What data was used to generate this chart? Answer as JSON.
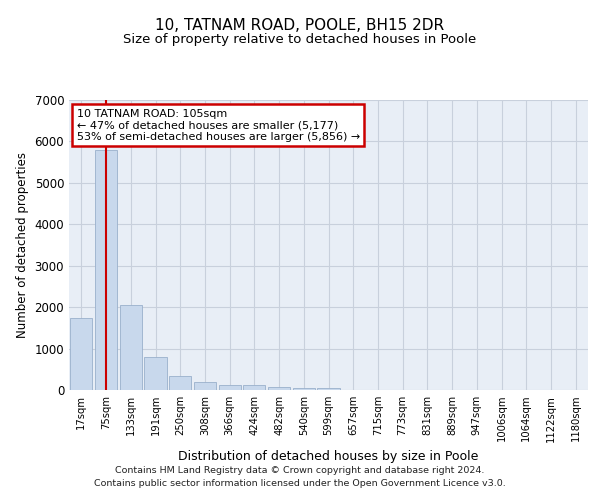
{
  "title": "10, TATNAM ROAD, POOLE, BH15 2DR",
  "subtitle": "Size of property relative to detached houses in Poole",
  "xlabel": "Distribution of detached houses by size in Poole",
  "ylabel": "Number of detached properties",
  "categories": [
    "17sqm",
    "75sqm",
    "133sqm",
    "191sqm",
    "250sqm",
    "308sqm",
    "366sqm",
    "424sqm",
    "482sqm",
    "540sqm",
    "599sqm",
    "657sqm",
    "715sqm",
    "773sqm",
    "831sqm",
    "889sqm",
    "947sqm",
    "1006sqm",
    "1064sqm",
    "1122sqm",
    "1180sqm"
  ],
  "values": [
    1750,
    5800,
    2050,
    800,
    330,
    190,
    130,
    110,
    70,
    50,
    60,
    0,
    0,
    0,
    0,
    0,
    0,
    0,
    0,
    0,
    0
  ],
  "bar_color": "#c8d8ec",
  "bar_edge_color": "#9ab0cc",
  "property_line_index": 1,
  "property_line_color": "#cc0000",
  "annotation_text": "10 TATNAM ROAD: 105sqm\n← 47% of detached houses are smaller (5,177)\n53% of semi-detached houses are larger (5,856) →",
  "annotation_box_edgecolor": "#cc0000",
  "annotation_box_facecolor": "#ffffff",
  "ylim": [
    0,
    7000
  ],
  "yticks": [
    0,
    1000,
    2000,
    3000,
    4000,
    5000,
    6000,
    7000
  ],
  "plot_bg_color": "#e8eef6",
  "grid_color": "#c8d0dc",
  "footer_line1": "Contains HM Land Registry data © Crown copyright and database right 2024.",
  "footer_line2": "Contains public sector information licensed under the Open Government Licence v3.0."
}
